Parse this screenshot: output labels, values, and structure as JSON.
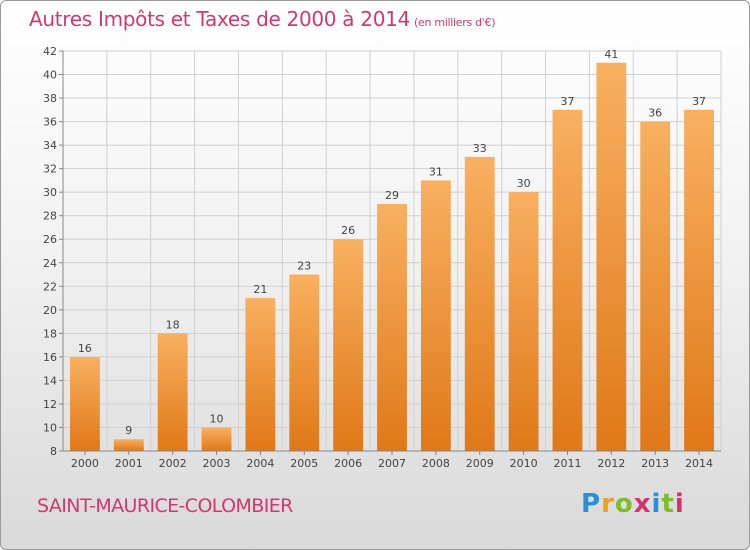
{
  "header": {
    "title": "Autres Impôts et Taxes de 2000 à 2014",
    "subtitle": "(en milliers d'€)"
  },
  "footer": {
    "commune": "SAINT-MAURICE-COLOMBIER",
    "logo_letters": [
      "P",
      "r",
      "o",
      "x",
      "i",
      "t",
      "i"
    ]
  },
  "colors": {
    "accent": "#d1386e",
    "bar_top": "#f8b060",
    "bar_bottom": "#e07818",
    "logo": [
      "#2c8fd6",
      "#e8a21b",
      "#7cbd2a",
      "#d6336c"
    ]
  },
  "chart_data": {
    "type": "bar",
    "title": "Autres Impôts et Taxes de 2000 à 2014",
    "subtitle": "(en milliers d'€)",
    "xlabel": "",
    "ylabel": "",
    "categories": [
      "2000",
      "2001",
      "2002",
      "2003",
      "2004",
      "2005",
      "2006",
      "2007",
      "2008",
      "2009",
      "2010",
      "2011",
      "2012",
      "2013",
      "2014"
    ],
    "values": [
      16,
      9,
      18,
      10,
      21,
      23,
      26,
      29,
      31,
      33,
      30,
      37,
      41,
      36,
      37
    ],
    "ylim": [
      8,
      42
    ],
    "yticks": [
      8,
      10,
      12,
      14,
      16,
      18,
      20,
      22,
      24,
      26,
      28,
      30,
      32,
      34,
      36,
      38,
      40,
      42
    ],
    "grid": true,
    "data_labels": true
  }
}
